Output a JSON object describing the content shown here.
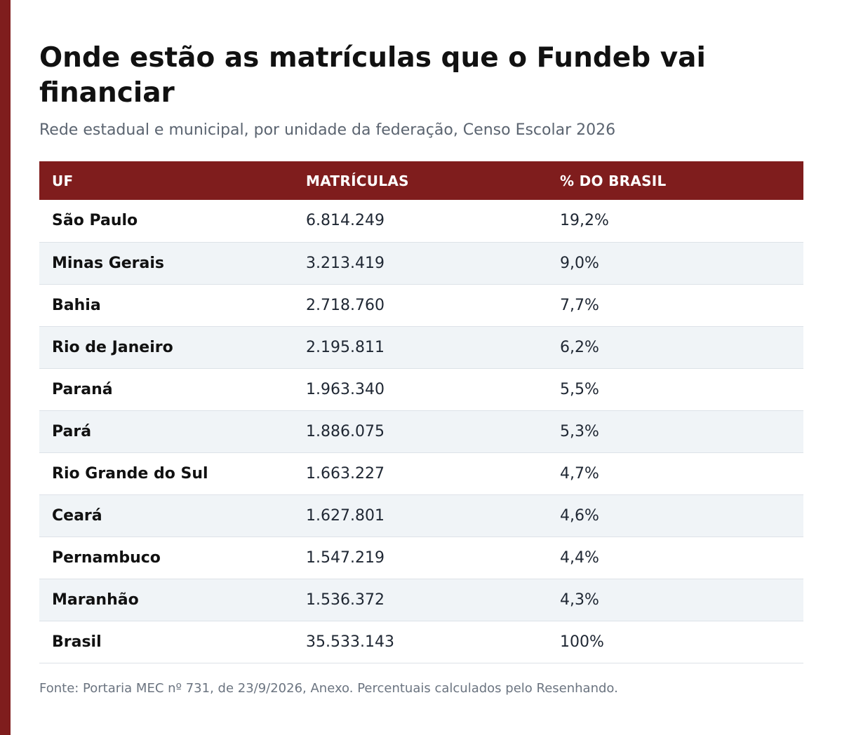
{
  "colors": {
    "accent": "#7f1d1d",
    "stripe": "#f0f4f7",
    "title": "#111111",
    "subtitle": "#5b6470"
  },
  "title": "Onde estão as matrículas que o Fundeb vai financiar",
  "subtitle": "Rede estadual e municipal, por unidade da federação, Censo Escolar 2026",
  "source": "Fonte: Portaria MEC nº 731, de 23/9/2026, Anexo. Percentuais calculados pelo Resenhando.",
  "chart_data": {
    "type": "table",
    "columns": [
      "UF",
      "MATRÍCULAS",
      "% DO BRASIL"
    ],
    "rows": [
      [
        "São Paulo",
        "6.814.249",
        "19,2%"
      ],
      [
        "Minas Gerais",
        "3.213.419",
        "9,0%"
      ],
      [
        "Bahia",
        "2.718.760",
        "7,7%"
      ],
      [
        "Rio de Janeiro",
        "2.195.811",
        "6,2%"
      ],
      [
        "Paraná",
        "1.963.340",
        "5,5%"
      ],
      [
        "Pará",
        "1.886.075",
        "5,3%"
      ],
      [
        "Rio Grande do Sul",
        "1.663.227",
        "4,7%"
      ],
      [
        "Ceará",
        "1.627.801",
        "4,6%"
      ],
      [
        "Pernambuco",
        "1.547.219",
        "4,4%"
      ],
      [
        "Maranhão",
        "1.536.372",
        "4,3%"
      ],
      [
        "Brasil",
        "35.533.143",
        "100%"
      ]
    ]
  }
}
